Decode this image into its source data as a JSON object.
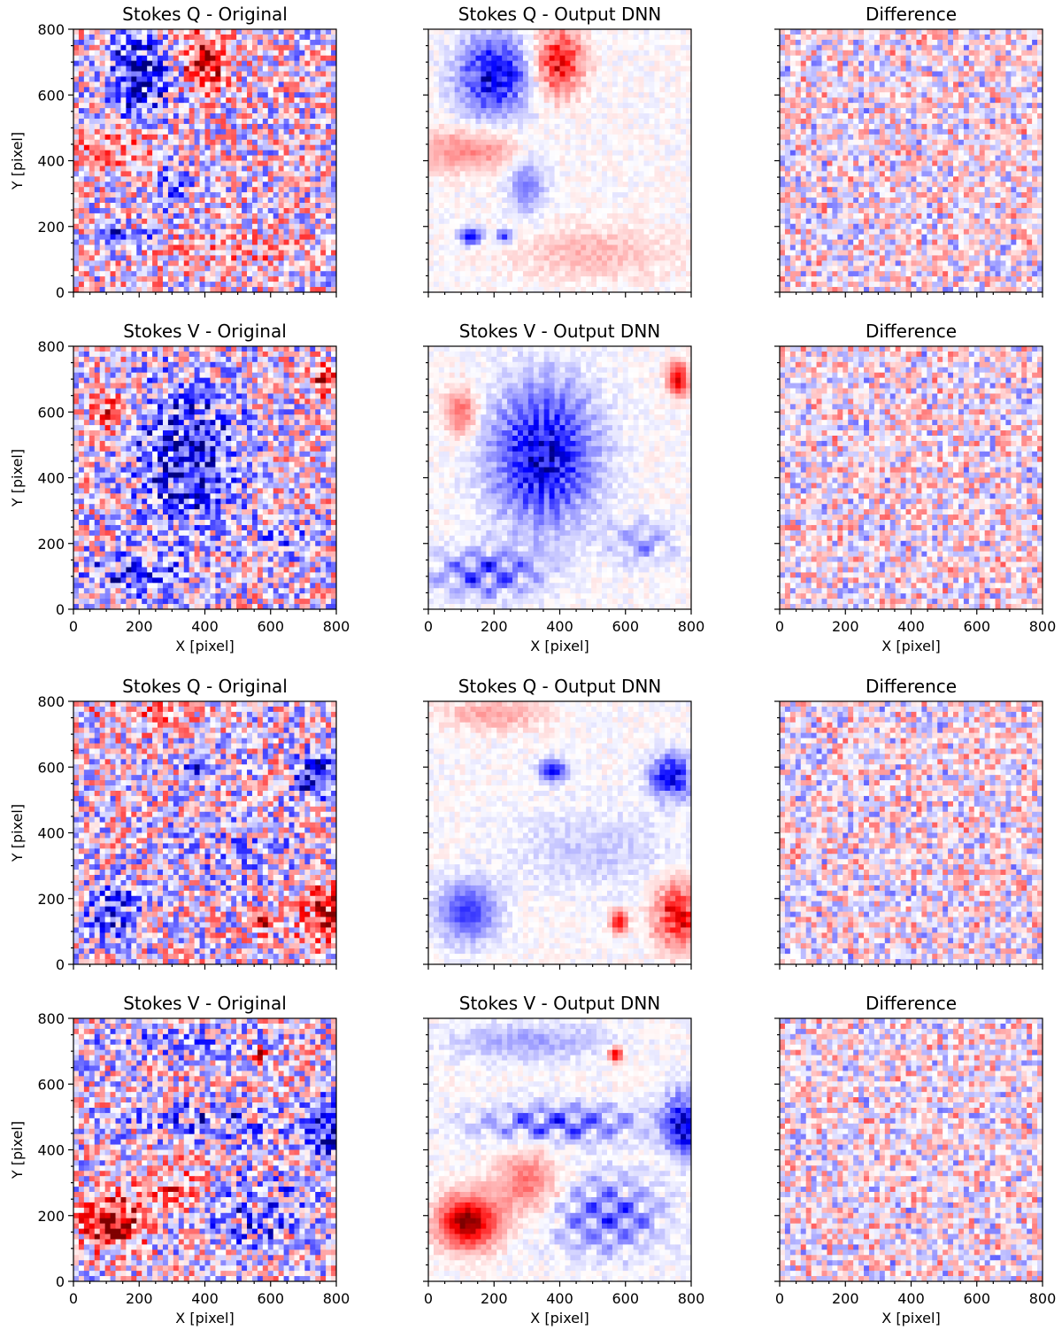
{
  "figure": {
    "description_free": true,
    "colormap": {
      "name": "seismic",
      "negative_color": "#00007f",
      "mid_color": "#ffffff",
      "positive_color": "#7f0000"
    }
  },
  "chart_data": [
    {
      "type": "heatmap",
      "group": 1,
      "row": 1,
      "col": 1,
      "title": "Stokes Q - Original",
      "field": "Q",
      "kind": "original",
      "dataset": 1,
      "xlabel": "",
      "ylabel": "Y [pixel]",
      "xlim": [
        0,
        800
      ],
      "ylim": [
        0,
        800
      ],
      "xticks": [],
      "yticks": [
        "0",
        "200",
        "400",
        "600",
        "800"
      ]
    },
    {
      "type": "heatmap",
      "group": 1,
      "row": 1,
      "col": 2,
      "title": "Stokes Q - Output DNN",
      "field": "Q",
      "kind": "dnn",
      "dataset": 1,
      "xlabel": "",
      "ylabel": "",
      "xlim": [
        0,
        800
      ],
      "ylim": [
        0,
        800
      ],
      "xticks": [],
      "yticks": []
    },
    {
      "type": "heatmap",
      "group": 1,
      "row": 1,
      "col": 3,
      "title": "Difference",
      "field": "Q",
      "kind": "diff",
      "dataset": 1,
      "xlabel": "",
      "ylabel": "",
      "xlim": [
        0,
        800
      ],
      "ylim": [
        0,
        800
      ],
      "xticks": [],
      "yticks": []
    },
    {
      "type": "heatmap",
      "group": 1,
      "row": 2,
      "col": 1,
      "title": "Stokes V - Original",
      "field": "V",
      "kind": "original",
      "dataset": 1,
      "xlabel": "X [pixel]",
      "ylabel": "Y [pixel]",
      "xlim": [
        0,
        800
      ],
      "ylim": [
        0,
        800
      ],
      "xticks": [
        "0",
        "200",
        "400",
        "600",
        "800"
      ],
      "yticks": [
        "0",
        "200",
        "400",
        "600",
        "800"
      ]
    },
    {
      "type": "heatmap",
      "group": 1,
      "row": 2,
      "col": 2,
      "title": "Stokes V - Output DNN",
      "field": "V",
      "kind": "dnn",
      "dataset": 1,
      "xlabel": "X [pixel]",
      "ylabel": "",
      "xlim": [
        0,
        800
      ],
      "ylim": [
        0,
        800
      ],
      "xticks": [
        "0",
        "200",
        "400",
        "600",
        "800"
      ],
      "yticks": []
    },
    {
      "type": "heatmap",
      "group": 1,
      "row": 2,
      "col": 3,
      "title": "Difference",
      "field": "V",
      "kind": "diff",
      "dataset": 1,
      "xlabel": "X [pixel]",
      "ylabel": "",
      "xlim": [
        0,
        800
      ],
      "ylim": [
        0,
        800
      ],
      "xticks": [
        "0",
        "200",
        "400",
        "600",
        "800"
      ],
      "yticks": []
    },
    {
      "type": "heatmap",
      "group": 2,
      "row": 3,
      "col": 1,
      "title": "Stokes Q - Original",
      "field": "Q",
      "kind": "original",
      "dataset": 2,
      "xlabel": "",
      "ylabel": "Y [pixel]",
      "xlim": [
        0,
        800
      ],
      "ylim": [
        0,
        800
      ],
      "xticks": [],
      "yticks": [
        "0",
        "200",
        "400",
        "600",
        "800"
      ]
    },
    {
      "type": "heatmap",
      "group": 2,
      "row": 3,
      "col": 2,
      "title": "Stokes Q - Output DNN",
      "field": "Q",
      "kind": "dnn",
      "dataset": 2,
      "xlabel": "",
      "ylabel": "",
      "xlim": [
        0,
        800
      ],
      "ylim": [
        0,
        800
      ],
      "xticks": [],
      "yticks": []
    },
    {
      "type": "heatmap",
      "group": 2,
      "row": 3,
      "col": 3,
      "title": "Difference",
      "field": "Q",
      "kind": "diff",
      "dataset": 2,
      "xlabel": "",
      "ylabel": "",
      "xlim": [
        0,
        800
      ],
      "ylim": [
        0,
        800
      ],
      "xticks": [],
      "yticks": []
    },
    {
      "type": "heatmap",
      "group": 2,
      "row": 4,
      "col": 1,
      "title": "Stokes V - Original",
      "field": "V",
      "kind": "original",
      "dataset": 2,
      "xlabel": "X [pixel]",
      "ylabel": "Y [pixel]",
      "xlim": [
        0,
        800
      ],
      "ylim": [
        0,
        800
      ],
      "xticks": [
        "0",
        "200",
        "400",
        "600",
        "800"
      ],
      "yticks": [
        "0",
        "200",
        "400",
        "600",
        "800"
      ]
    },
    {
      "type": "heatmap",
      "group": 2,
      "row": 4,
      "col": 2,
      "title": "Stokes V - Output DNN",
      "field": "V",
      "kind": "dnn",
      "dataset": 2,
      "xlabel": "X [pixel]",
      "ylabel": "",
      "xlim": [
        0,
        800
      ],
      "ylim": [
        0,
        800
      ],
      "xticks": [
        "0",
        "200",
        "400",
        "600",
        "800"
      ],
      "yticks": []
    },
    {
      "type": "heatmap",
      "group": 2,
      "row": 4,
      "col": 3,
      "title": "Difference",
      "field": "V",
      "kind": "diff",
      "dataset": 2,
      "xlabel": "X [pixel]",
      "ylabel": "",
      "xlim": [
        0,
        800
      ],
      "ylim": [
        0,
        800
      ],
      "xticks": [
        "0",
        "200",
        "400",
        "600",
        "800"
      ],
      "yticks": []
    }
  ]
}
